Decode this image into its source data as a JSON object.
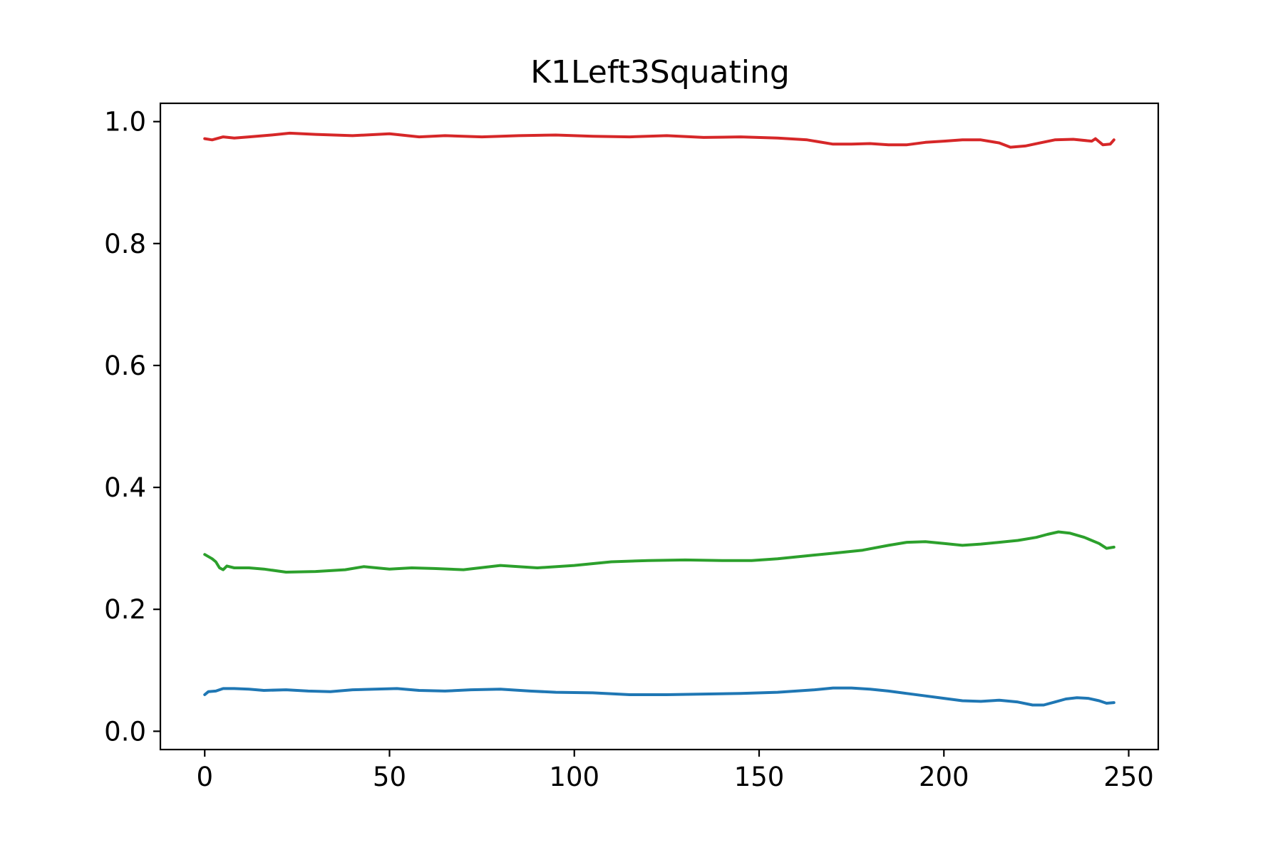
{
  "chart_data": {
    "type": "line",
    "title": "K1Left3Squating",
    "xlabel": "",
    "ylabel": "",
    "xlim": [
      -12,
      258
    ],
    "ylim": [
      -0.03,
      1.03
    ],
    "xticks": [
      0,
      50,
      100,
      150,
      200,
      250
    ],
    "xtick_labels": [
      "0",
      "50",
      "100",
      "150",
      "200",
      "250"
    ],
    "yticks": [
      0.0,
      0.2,
      0.4,
      0.6,
      0.8,
      1.0
    ],
    "ytick_labels": [
      "0.0",
      "0.2",
      "0.4",
      "0.6",
      "0.8",
      "1.0"
    ],
    "grid": false,
    "series": [
      {
        "color": "#d62728",
        "x": [
          0,
          2,
          5,
          8,
          12,
          18,
          23,
          30,
          40,
          50,
          58,
          65,
          75,
          85,
          95,
          105,
          115,
          125,
          135,
          145,
          155,
          163,
          170,
          175,
          180,
          185,
          190,
          195,
          200,
          205,
          210,
          215,
          218,
          222,
          226,
          230,
          235,
          240,
          241,
          243,
          245,
          246
        ],
        "values": [
          0.972,
          0.97,
          0.975,
          0.973,
          0.975,
          0.978,
          0.981,
          0.979,
          0.977,
          0.98,
          0.975,
          0.977,
          0.975,
          0.977,
          0.978,
          0.976,
          0.975,
          0.977,
          0.974,
          0.975,
          0.973,
          0.97,
          0.963,
          0.963,
          0.964,
          0.962,
          0.962,
          0.966,
          0.968,
          0.97,
          0.97,
          0.965,
          0.958,
          0.96,
          0.965,
          0.97,
          0.971,
          0.968,
          0.972,
          0.962,
          0.963,
          0.97
        ]
      },
      {
        "color": "#2ca02c",
        "x": [
          0,
          2,
          3,
          4,
          5,
          6,
          8,
          12,
          16,
          22,
          30,
          38,
          43,
          50,
          56,
          62,
          70,
          80,
          90,
          100,
          110,
          120,
          130,
          140,
          148,
          155,
          160,
          165,
          170,
          178,
          185,
          190,
          195,
          200,
          205,
          210,
          215,
          220,
          225,
          228,
          231,
          234,
          238,
          242,
          244,
          246
        ],
        "values": [
          0.29,
          0.283,
          0.278,
          0.268,
          0.265,
          0.271,
          0.268,
          0.268,
          0.266,
          0.261,
          0.262,
          0.265,
          0.27,
          0.266,
          0.268,
          0.267,
          0.265,
          0.272,
          0.268,
          0.272,
          0.278,
          0.28,
          0.281,
          0.28,
          0.28,
          0.283,
          0.286,
          0.289,
          0.292,
          0.297,
          0.305,
          0.31,
          0.311,
          0.308,
          0.305,
          0.307,
          0.31,
          0.313,
          0.318,
          0.323,
          0.327,
          0.325,
          0.318,
          0.308,
          0.3,
          0.302
        ]
      },
      {
        "color": "#1f77b4",
        "x": [
          0,
          1,
          3,
          5,
          8,
          12,
          16,
          22,
          28,
          34,
          40,
          46,
          52,
          58,
          65,
          72,
          80,
          88,
          95,
          105,
          115,
          125,
          135,
          145,
          155,
          165,
          170,
          175,
          180,
          185,
          190,
          195,
          200,
          205,
          210,
          215,
          220,
          224,
          227,
          230,
          233,
          236,
          239,
          242,
          244,
          246
        ],
        "values": [
          0.06,
          0.065,
          0.066,
          0.07,
          0.07,
          0.069,
          0.067,
          0.068,
          0.066,
          0.065,
          0.068,
          0.069,
          0.07,
          0.067,
          0.066,
          0.068,
          0.069,
          0.066,
          0.064,
          0.063,
          0.06,
          0.06,
          0.061,
          0.062,
          0.064,
          0.068,
          0.071,
          0.071,
          0.069,
          0.066,
          0.062,
          0.058,
          0.054,
          0.05,
          0.049,
          0.051,
          0.048,
          0.043,
          0.043,
          0.048,
          0.053,
          0.055,
          0.054,
          0.05,
          0.046,
          0.047
        ]
      }
    ]
  }
}
